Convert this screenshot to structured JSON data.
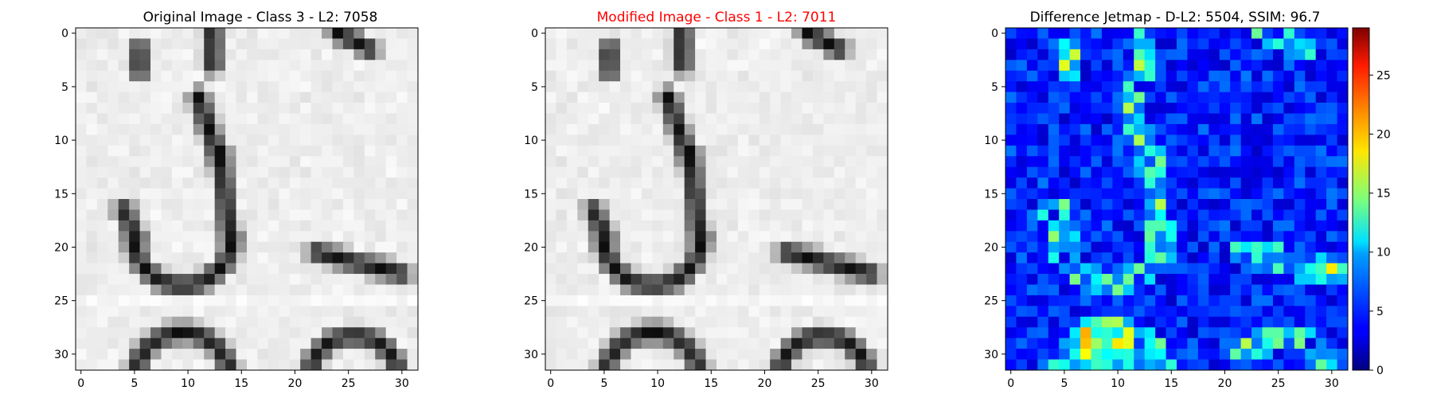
{
  "chart_data": [
    {
      "type": "heatmap",
      "title": "Original Image - Class 3 - L2: 7058",
      "title_color": "#000000",
      "colormap": "gray",
      "grid_size": [
        32,
        32
      ],
      "xlim": [
        0,
        31
      ],
      "ylim": [
        31,
        0
      ],
      "xticks": [
        "0",
        "5",
        "10",
        "15",
        "20",
        "25",
        "30"
      ],
      "yticks": [
        "0",
        "5",
        "10",
        "15",
        "20",
        "25",
        "30"
      ],
      "content": "grayscale 32x32 pixel image of a handwritten digit 3 with partial letters at the bottom and right"
    },
    {
      "type": "heatmap",
      "title": "Modified Image - Class 1 - L2: 7011",
      "title_color": "#ff0000",
      "colormap": "gray",
      "grid_size": [
        32,
        32
      ],
      "xlim": [
        0,
        31
      ],
      "ylim": [
        31,
        0
      ],
      "xticks": [
        "0",
        "5",
        "10",
        "15",
        "20",
        "25",
        "30"
      ],
      "yticks": [
        "0",
        "5",
        "10",
        "15",
        "20",
        "25",
        "30"
      ],
      "content": "slightly perturbed version of the original digit image"
    },
    {
      "type": "heatmap",
      "title": "Difference Jetmap - D-L2: 5504, SSIM: 96.7",
      "title_color": "#000000",
      "colormap": "jet",
      "grid_size": [
        32,
        32
      ],
      "xlim": [
        0,
        31
      ],
      "ylim": [
        31,
        0
      ],
      "xticks": [
        "0",
        "5",
        "10",
        "15",
        "20",
        "25",
        "30"
      ],
      "yticks": [
        "0",
        "5",
        "10",
        "15",
        "20",
        "25",
        "30"
      ],
      "colorbar": {
        "min": 0,
        "max": 29,
        "ticks": [
          "0",
          "5",
          "10",
          "15",
          "20",
          "25"
        ]
      },
      "content": "per-pixel absolute difference, highest values along the digit strokes"
    }
  ]
}
